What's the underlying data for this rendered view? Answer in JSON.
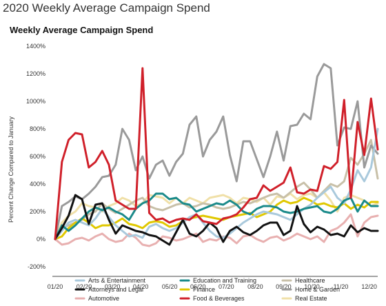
{
  "page": {
    "heading": "2020 Weekly Average Campaign Spend"
  },
  "chart_data": {
    "type": "line",
    "title": "Weekly Average Campaign Spend",
    "xlabel": "",
    "ylabel": "Percent Change Compared to January",
    "ylim": [
      -200,
      1400
    ],
    "yticks": [
      -200,
      0,
      200,
      400,
      600,
      800,
      1000,
      1200,
      1400
    ],
    "ytick_labels": [
      "-200%",
      "0%",
      "200%",
      "400%",
      "600%",
      "800%",
      "1000%",
      "1200%",
      "1400%"
    ],
    "xlim": [
      0,
      49
    ],
    "xticks": [
      0,
      4.4,
      8.7,
      13,
      17.4,
      21.7,
      26,
      30.4,
      34.7,
      39,
      43.4,
      47.7
    ],
    "xtick_labels": [
      "01/20",
      "02/20",
      "03/20",
      "04/20",
      "05/20",
      "06/20",
      "07/20",
      "08/20",
      "09/20",
      "10/20",
      "11/20",
      "12/20"
    ],
    "grid": false,
    "legend_position": "bottom",
    "series": [
      {
        "name": "Arts & Entertainment",
        "color": "#a9c9dc",
        "values": [
          0,
          60,
          120,
          140,
          120,
          100,
          150,
          220,
          160,
          100,
          60,
          20,
          30,
          10,
          90,
          110,
          80,
          60,
          80,
          120,
          160,
          180,
          120,
          60,
          20,
          10,
          40,
          80,
          120,
          150,
          180,
          200,
          190,
          180,
          160,
          140,
          180,
          220,
          250,
          300,
          340,
          380,
          300,
          260,
          360,
          500,
          420,
          520,
          800
        ]
      },
      {
        "name": "Attorneys and Legal",
        "color": "#111111",
        "values": [
          0,
          80,
          170,
          320,
          290,
          110,
          250,
          260,
          140,
          40,
          100,
          80,
          60,
          50,
          30,
          20,
          -10,
          -40,
          50,
          140,
          40,
          20,
          60,
          120,
          80,
          -20,
          60,
          90,
          50,
          30,
          60,
          100,
          120,
          120,
          30,
          60,
          240,
          110,
          50,
          90,
          70,
          30,
          40,
          20,
          100,
          50,
          80,
          60,
          60
        ]
      },
      {
        "name": "Automotive",
        "color": "#e8b0b0",
        "values": [
          0,
          -40,
          -30,
          0,
          10,
          -10,
          20,
          40,
          0,
          -20,
          -10,
          40,
          10,
          -40,
          -50,
          -30,
          20,
          10,
          -10,
          0,
          20,
          40,
          -20,
          0,
          -10,
          20,
          10,
          -30,
          20,
          30,
          0,
          -20,
          10,
          20,
          -10,
          10,
          40,
          20,
          0,
          20,
          -20,
          60,
          80,
          120,
          180,
          20,
          120,
          160,
          170
        ]
      },
      {
        "name": "Education and Training",
        "color": "#1a8a8a",
        "values": [
          0,
          100,
          60,
          100,
          150,
          200,
          230,
          210,
          230,
          200,
          180,
          140,
          220,
          260,
          280,
          330,
          330,
          290,
          300,
          260,
          250,
          200,
          220,
          240,
          260,
          250,
          280,
          250,
          200,
          180,
          220,
          240,
          240,
          230,
          200,
          190,
          200,
          220,
          230,
          240,
          200,
          190,
          220,
          280,
          300,
          200,
          280,
          240,
          240
        ]
      },
      {
        "name": "Finance",
        "color": "#e0c800",
        "values": [
          0,
          20,
          80,
          120,
          150,
          120,
          80,
          100,
          100,
          120,
          150,
          110,
          100,
          80,
          120,
          130,
          120,
          90,
          100,
          130,
          150,
          160,
          170,
          160,
          150,
          140,
          160,
          170,
          180,
          190,
          160,
          180,
          200,
          250,
          280,
          260,
          270,
          300,
          280,
          250,
          260,
          240,
          230,
          260,
          220,
          250,
          230,
          270,
          270
        ]
      },
      {
        "name": "Food & Beverages",
        "color": "#d0202a",
        "values": [
          0,
          560,
          720,
          770,
          760,
          520,
          560,
          640,
          540,
          280,
          250,
          220,
          220,
          1240,
          190,
          140,
          150,
          120,
          140,
          150,
          140,
          180,
          130,
          120,
          110,
          150,
          160,
          180,
          230,
          290,
          300,
          390,
          350,
          380,
          410,
          520,
          340,
          330,
          360,
          350,
          530,
          510,
          560,
          1010,
          300,
          850,
          610,
          1020,
          650
        ]
      },
      {
        "name": "Healthcare",
        "color": "#c8c0a8",
        "values": [
          0,
          80,
          100,
          120,
          140,
          180,
          200,
          260,
          220,
          190,
          220,
          250,
          280,
          300,
          240,
          220,
          210,
          230,
          250,
          260,
          230,
          240,
          260,
          250,
          230,
          220,
          230,
          250,
          270,
          260,
          280,
          300,
          320,
          330,
          300,
          340,
          380,
          410,
          360,
          300,
          350,
          400,
          380,
          420,
          590,
          540,
          620,
          720,
          440
        ]
      },
      {
        "name": "Home & Garden",
        "color": "#9a9a9a",
        "values": [
          0,
          240,
          270,
          310,
          290,
          330,
          380,
          450,
          460,
          540,
          800,
          720,
          500,
          600,
          440,
          540,
          570,
          460,
          560,
          620,
          830,
          890,
          600,
          720,
          780,
          890,
          610,
          420,
          710,
          710,
          580,
          450,
          600,
          780,
          570,
          820,
          830,
          910,
          870,
          1180,
          1270,
          1240,
          680,
          810,
          800,
          1000,
          520,
          680,
          620
        ]
      },
      {
        "name": "Real Estate",
        "color": "#f0e0a8",
        "values": [
          0,
          120,
          170,
          200,
          260,
          240,
          230,
          200,
          240,
          260,
          300,
          280,
          240,
          260,
          320,
          310,
          300,
          260,
          300,
          260,
          300,
          280,
          260,
          300,
          310,
          320,
          300,
          260,
          300,
          290,
          270,
          300,
          250,
          310,
          300,
          330,
          290,
          320,
          330,
          300,
          340,
          280,
          200,
          300,
          320,
          300,
          280,
          240,
          260
        ]
      }
    ]
  }
}
